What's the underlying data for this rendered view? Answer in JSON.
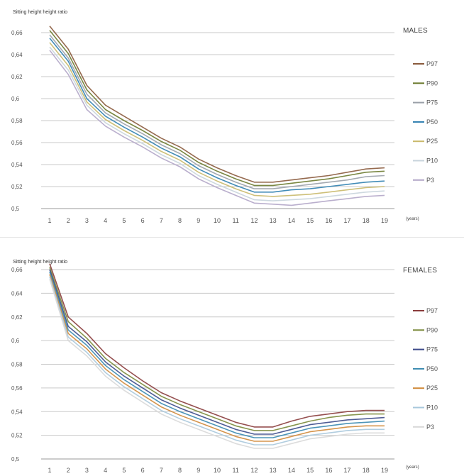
{
  "chart_data": [
    {
      "type": "line",
      "title": "MALES",
      "ylabel": "Sitting height height ratio",
      "xlabel": "(years)",
      "x": [
        1,
        2,
        3,
        4,
        5,
        6,
        7,
        8,
        9,
        10,
        11,
        12,
        13,
        14,
        15,
        16,
        17,
        18,
        19
      ],
      "ylim": [
        0.5,
        0.66
      ],
      "yticks": [
        "0,5",
        "0,52",
        "0,54",
        "0,56",
        "0,58",
        "0,6",
        "0,62",
        "0,64",
        "0,66"
      ],
      "grid": true,
      "legend_position": "right",
      "series": [
        {
          "name": "P97",
          "color": "#8a5a3c",
          "values": [
            0.666,
            0.645,
            0.612,
            0.594,
            0.584,
            0.574,
            0.564,
            0.556,
            0.545,
            0.537,
            0.53,
            0.524,
            0.524,
            0.526,
            0.528,
            0.53,
            0.533,
            0.536,
            0.537
          ]
        },
        {
          "name": "P90",
          "color": "#6b7a2e",
          "values": [
            0.662,
            0.641,
            0.608,
            0.59,
            0.58,
            0.571,
            0.561,
            0.553,
            0.542,
            0.534,
            0.527,
            0.521,
            0.521,
            0.523,
            0.525,
            0.527,
            0.53,
            0.533,
            0.534
          ]
        },
        {
          "name": "P75",
          "color": "#9aa0a8",
          "values": [
            0.658,
            0.637,
            0.604,
            0.587,
            0.577,
            0.568,
            0.558,
            0.55,
            0.539,
            0.531,
            0.524,
            0.518,
            0.518,
            0.52,
            0.522,
            0.524,
            0.526,
            0.529,
            0.53
          ]
        },
        {
          "name": "P50",
          "color": "#2e7fb0",
          "values": [
            0.655,
            0.634,
            0.6,
            0.584,
            0.574,
            0.565,
            0.555,
            0.547,
            0.536,
            0.528,
            0.521,
            0.515,
            0.515,
            0.517,
            0.518,
            0.52,
            0.522,
            0.524,
            0.525
          ]
        },
        {
          "name": "P25",
          "color": "#c9b96a",
          "values": [
            0.651,
            0.63,
            0.597,
            0.581,
            0.571,
            0.562,
            0.552,
            0.544,
            0.533,
            0.525,
            0.518,
            0.512,
            0.511,
            0.512,
            0.513,
            0.515,
            0.517,
            0.519,
            0.52
          ]
        },
        {
          "name": "P10",
          "color": "#c8d4dc",
          "values": [
            0.647,
            0.626,
            0.594,
            0.578,
            0.568,
            0.559,
            0.549,
            0.541,
            0.53,
            0.522,
            0.515,
            0.508,
            0.507,
            0.508,
            0.509,
            0.511,
            0.513,
            0.515,
            0.516
          ]
        },
        {
          "name": "P3",
          "color": "#b3a6c8",
          "values": [
            0.644,
            0.622,
            0.59,
            0.575,
            0.565,
            0.556,
            0.546,
            0.538,
            0.527,
            0.519,
            0.512,
            0.505,
            0.504,
            0.503,
            0.505,
            0.507,
            0.509,
            0.511,
            0.512
          ]
        }
      ]
    },
    {
      "type": "line",
      "title": "FEMALES",
      "ylabel": "Sitting height height ratio",
      "xlabel": "(years)",
      "x": [
        1,
        2,
        3,
        4,
        5,
        6,
        7,
        8,
        9,
        10,
        11,
        12,
        13,
        14,
        15,
        16,
        17,
        18,
        19
      ],
      "ylim": [
        0.5,
        0.66
      ],
      "yticks": [
        "0,5",
        "0,52",
        "0,54",
        "0,56",
        "0,58",
        "0,6",
        "0,62",
        "0,64",
        "0,66"
      ],
      "grid": true,
      "legend_position": "right",
      "series": [
        {
          "name": "P97",
          "color": "#8a3c3c",
          "values": [
            0.665,
            0.62,
            0.606,
            0.589,
            0.577,
            0.566,
            0.556,
            0.549,
            0.543,
            0.537,
            0.531,
            0.527,
            0.527,
            0.532,
            0.536,
            0.538,
            0.54,
            0.541,
            0.541
          ]
        },
        {
          "name": "P90",
          "color": "#7a8a3a",
          "values": [
            0.662,
            0.616,
            0.602,
            0.585,
            0.573,
            0.563,
            0.553,
            0.546,
            0.54,
            0.534,
            0.528,
            0.524,
            0.524,
            0.528,
            0.532,
            0.535,
            0.537,
            0.538,
            0.538
          ]
        },
        {
          "name": "P75",
          "color": "#3c4a8a",
          "values": [
            0.66,
            0.612,
            0.599,
            0.582,
            0.57,
            0.56,
            0.55,
            0.543,
            0.537,
            0.531,
            0.525,
            0.521,
            0.521,
            0.525,
            0.529,
            0.531,
            0.533,
            0.534,
            0.535
          ]
        },
        {
          "name": "P50",
          "color": "#3a8ab0",
          "values": [
            0.658,
            0.609,
            0.596,
            0.579,
            0.567,
            0.557,
            0.547,
            0.54,
            0.534,
            0.528,
            0.522,
            0.518,
            0.518,
            0.522,
            0.526,
            0.528,
            0.53,
            0.531,
            0.532
          ]
        },
        {
          "name": "P25",
          "color": "#d08a3a",
          "values": [
            0.656,
            0.606,
            0.593,
            0.576,
            0.564,
            0.554,
            0.544,
            0.537,
            0.531,
            0.525,
            0.519,
            0.515,
            0.515,
            0.519,
            0.523,
            0.525,
            0.527,
            0.528,
            0.528
          ]
        },
        {
          "name": "P10",
          "color": "#a8c8dc",
          "values": [
            0.654,
            0.603,
            0.59,
            0.573,
            0.561,
            0.551,
            0.541,
            0.534,
            0.528,
            0.522,
            0.516,
            0.512,
            0.512,
            0.516,
            0.52,
            0.522,
            0.524,
            0.525,
            0.525
          ]
        },
        {
          "name": "P3",
          "color": "#d8d8d8",
          "values": [
            0.652,
            0.6,
            0.587,
            0.57,
            0.558,
            0.548,
            0.538,
            0.531,
            0.525,
            0.519,
            0.513,
            0.509,
            0.509,
            0.513,
            0.517,
            0.519,
            0.521,
            0.522,
            0.522
          ]
        }
      ]
    }
  ]
}
